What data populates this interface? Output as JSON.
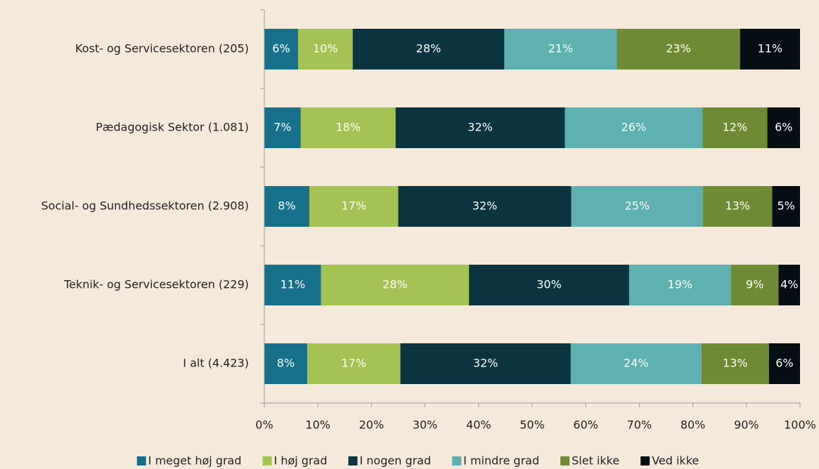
{
  "chart_data": {
    "type": "stacked-bar-horizontal",
    "categories": [
      "Kost- og Servicesektoren (205)",
      "Pædagogisk Sektor (1.081)",
      "Social- og Sundhedssektoren (2.908)",
      "Teknik- og Servicesektoren (229)",
      "I alt (4.423)"
    ],
    "series": [
      {
        "name": "I meget høj grad",
        "color": "#17718a",
        "values": [
          6.3,
          6.8,
          8.4,
          10.6,
          8.0
        ],
        "value_labels": [
          "6%",
          "7%",
          "8%",
          "11%",
          "8%"
        ]
      },
      {
        "name": "I høj grad",
        "color": "#a5c255",
        "values": [
          10.2,
          17.7,
          16.6,
          27.6,
          17.4
        ],
        "value_labels": [
          "10%",
          "18%",
          "17%",
          "28%",
          "17%"
        ]
      },
      {
        "name": "I nogen grad",
        "color": "#0a3440",
        "values": [
          28.3,
          31.6,
          32.3,
          29.9,
          31.8
        ],
        "value_labels": [
          "28%",
          "32%",
          "32%",
          "30%",
          "32%"
        ]
      },
      {
        "name": "I mindre grad",
        "color": "#5fb0b0",
        "values": [
          21.0,
          25.7,
          24.6,
          19.0,
          24.4
        ],
        "value_labels": [
          "21%",
          "26%",
          "25%",
          "19%",
          "24%"
        ]
      },
      {
        "name": "Slet ikke",
        "color": "#6f8a35",
        "values": [
          23.0,
          12.1,
          12.9,
          8.9,
          12.6
        ],
        "value_labels": [
          "23%",
          "12%",
          "13%",
          "9%",
          "13%"
        ]
      },
      {
        "name": "Ved ikke",
        "color": "#060e14",
        "values": [
          11.2,
          6.1,
          5.2,
          4.0,
          5.8
        ],
        "value_labels": [
          "11%",
          "6%",
          "5%",
          "4%",
          "6%"
        ]
      }
    ],
    "xlim": [
      0,
      100
    ],
    "xticks": [
      {
        "value": 0,
        "label": "0%"
      },
      {
        "value": 10,
        "label": "10%"
      },
      {
        "value": 20,
        "label": "20%"
      },
      {
        "value": 30,
        "label": "30%"
      },
      {
        "value": 40,
        "label": "40%"
      },
      {
        "value": 50,
        "label": "50%"
      },
      {
        "value": 60,
        "label": "60%"
      },
      {
        "value": 70,
        "label": "70%"
      },
      {
        "value": 80,
        "label": "80%"
      },
      {
        "value": 90,
        "label": "90%"
      },
      {
        "value": 100,
        "label": "100%"
      }
    ],
    "legend": "bottom"
  }
}
